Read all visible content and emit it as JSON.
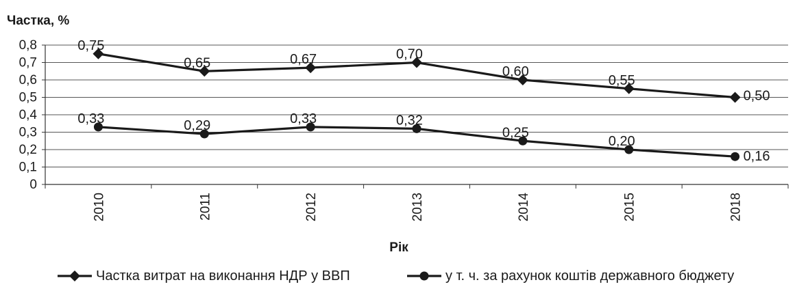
{
  "chart_data": {
    "type": "line",
    "title": "",
    "ylabel": "Частка, %",
    "xlabel": "Рік",
    "categories": [
      "2010",
      "2011",
      "2012",
      "2013",
      "2014",
      "2015",
      "2018"
    ],
    "y_ticks": [
      "0",
      "0,1",
      "0,2",
      "0,3",
      "0,4",
      "0,5",
      "0,6",
      "0,7",
      "0,8"
    ],
    "ylim": [
      0,
      0.8
    ],
    "grid": true,
    "legend_position": "bottom",
    "series": [
      {
        "name": "Частка витрат на виконання НДР у ВВП",
        "marker": "diamond",
        "values": [
          0.75,
          0.65,
          0.67,
          0.7,
          0.6,
          0.55,
          0.5
        ],
        "labels": [
          "0,75",
          "0,65",
          "0,67",
          "0,70",
          "0,60",
          "0,55",
          "0,50"
        ],
        "color": "#1a1a1a"
      },
      {
        "name": "у т. ч. за рахунок коштів державного бюджету",
        "marker": "circle",
        "values": [
          0.33,
          0.29,
          0.33,
          0.32,
          0.25,
          0.2,
          0.16
        ],
        "labels": [
          "0,33",
          "0,29",
          "0,33",
          "0,32",
          "0,25",
          "0,20",
          "0,16"
        ],
        "color": "#1a1a1a"
      }
    ]
  }
}
